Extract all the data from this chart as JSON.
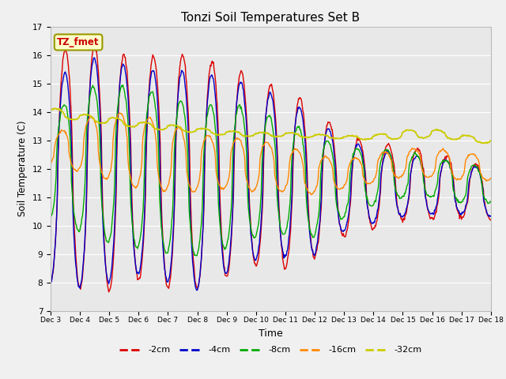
{
  "title": "Tonzi Soil Temperatures Set B",
  "xlabel": "Time",
  "ylabel": "Soil Temperature (C)",
  "ylim": [
    7.0,
    17.0
  ],
  "yticks": [
    7.0,
    8.0,
    9.0,
    10.0,
    11.0,
    12.0,
    13.0,
    14.0,
    15.0,
    16.0,
    17.0
  ],
  "xtick_labels": [
    "Dec 3",
    "Dec 4",
    "Dec 5",
    "Dec 6",
    "Dec 7",
    "Dec 8",
    "Dec 9",
    "Dec 10",
    "Dec 11",
    "Dec 12",
    "Dec 13",
    "Dec 14",
    "Dec 15",
    "Dec 16",
    "Dec 17",
    "Dec 18"
  ],
  "series_colors": [
    "#dd0000",
    "#0000cc",
    "#00aa00",
    "#ff8800",
    "#cccc00"
  ],
  "series_labels": [
    "-2cm",
    "-4cm",
    "-8cm",
    "-16cm",
    "-32cm"
  ],
  "fig_bg_color": "#f0f0f0",
  "plot_bg_color": "#e8e8e8",
  "grid_color": "#ffffff",
  "annotation_text": "TZ_fmet",
  "annotation_color": "#cc0000",
  "annotation_bg": "#ffffcc",
  "annotation_edge": "#999900"
}
